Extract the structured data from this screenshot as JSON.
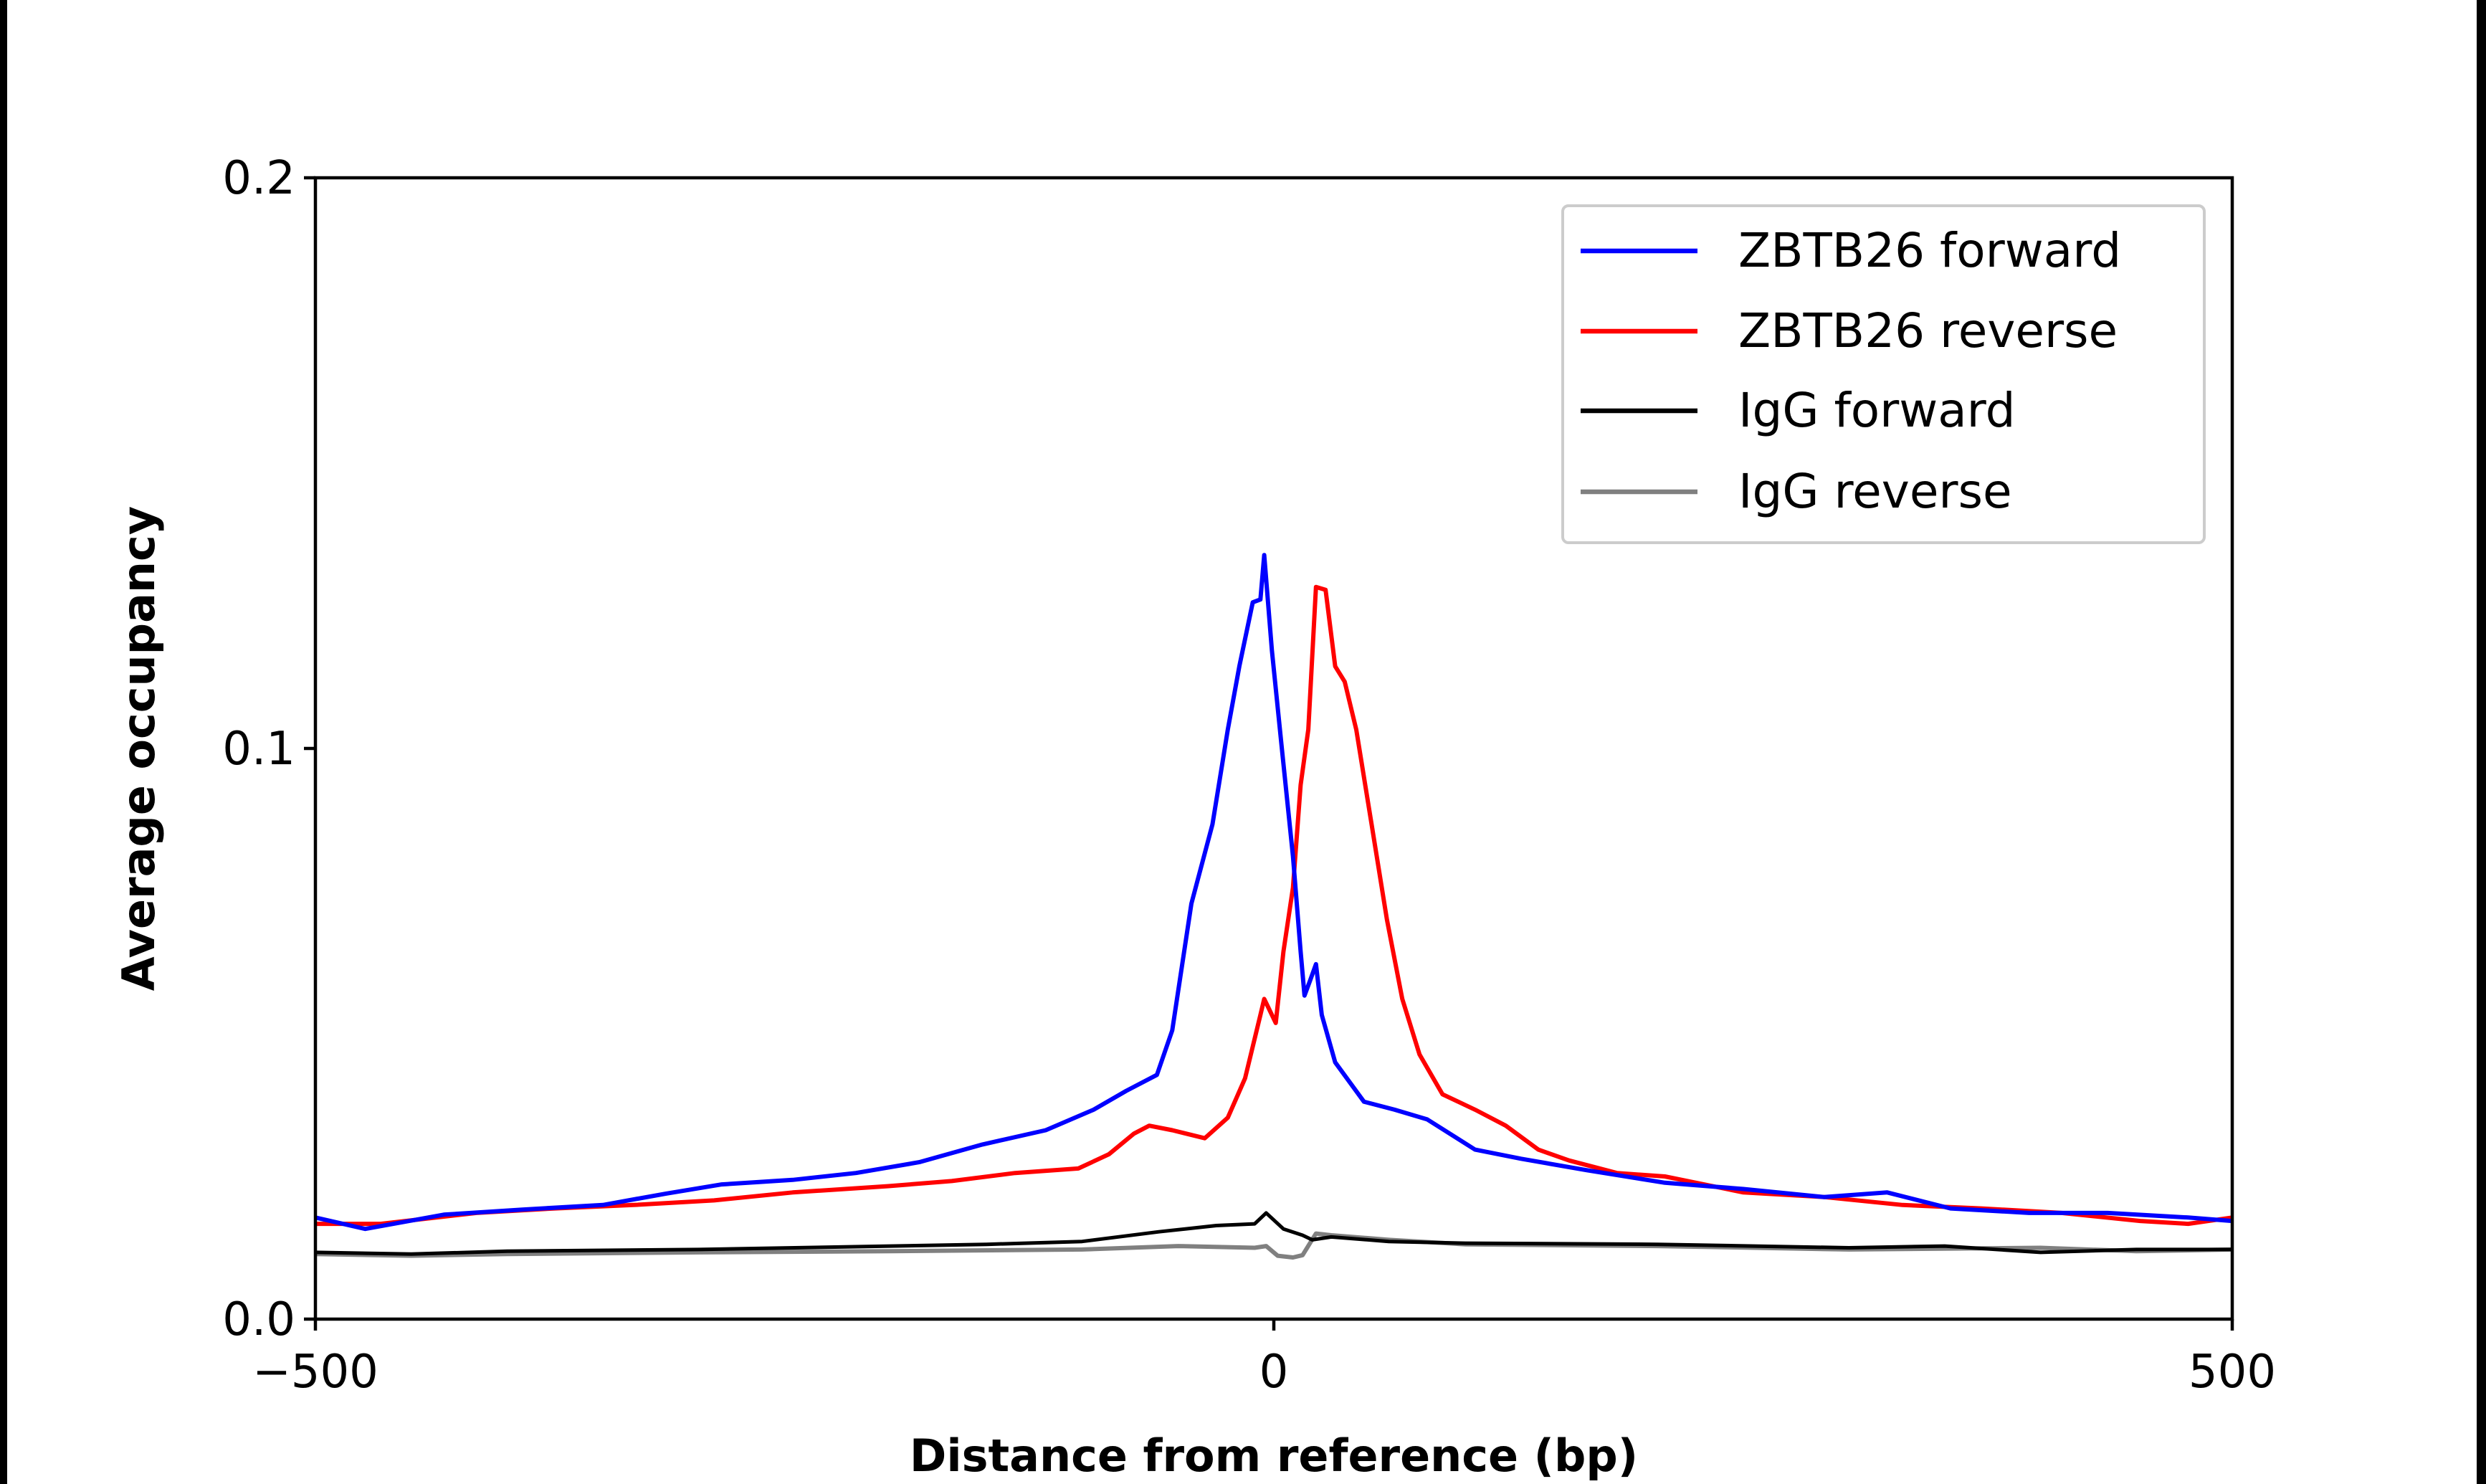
{
  "chart_data": {
    "type": "line",
    "title": "",
    "xlabel": "Distance from reference (bp)",
    "ylabel": "Average occupancy",
    "xlim": [
      -500,
      500
    ],
    "ylim": [
      0,
      0.2
    ],
    "xticks": [
      {
        "value": -500,
        "label": "−500"
      },
      {
        "value": 0,
        "label": "0"
      },
      {
        "value": 500,
        "label": "500"
      }
    ],
    "yticks": [
      {
        "value": 0,
        "label": "0.0"
      },
      {
        "value": 0.1,
        "label": "0.1"
      },
      {
        "value": 0.2,
        "label": "0.2"
      }
    ],
    "grid": false,
    "legend_position": "top-right",
    "series": [
      {
        "name": "ZBTB26 forward",
        "color": "#0000ff",
        "x": [
          -500,
          -474,
          -433,
          -392,
          -350,
          -317,
          -288,
          -251,
          -218,
          -185,
          -152,
          -119,
          -94,
          -77,
          -61,
          -53,
          -43,
          -32,
          -24,
          -18,
          -11,
          -7,
          -5,
          -1,
          4,
          10,
          14,
          16,
          19,
          22,
          25,
          32,
          47,
          63,
          80,
          105,
          129,
          163,
          204,
          245,
          287,
          320,
          353,
          394,
          435,
          477,
          500
        ],
        "y": [
          0.0178,
          0.0158,
          0.0183,
          0.0192,
          0.02,
          0.022,
          0.0236,
          0.0244,
          0.0256,
          0.0275,
          0.0306,
          0.0331,
          0.0367,
          0.04,
          0.0428,
          0.0506,
          0.0728,
          0.0867,
          0.1033,
          0.1144,
          0.1256,
          0.1261,
          0.1339,
          0.1172,
          0.1006,
          0.0811,
          0.0644,
          0.0567,
          0.0594,
          0.0622,
          0.0533,
          0.045,
          0.0381,
          0.0367,
          0.035,
          0.0297,
          0.0281,
          0.0261,
          0.0239,
          0.0228,
          0.0214,
          0.0222,
          0.0194,
          0.0186,
          0.0186,
          0.0178,
          0.0172
        ]
      },
      {
        "name": "ZBTB26 reverse",
        "color": "#ff0000",
        "x": [
          -500,
          -466,
          -416,
          -375,
          -334,
          -292,
          -251,
          -201,
          -168,
          -135,
          -102,
          -86,
          -73,
          -65,
          -53,
          -36,
          -24,
          -15,
          -7,
          -5,
          1,
          5,
          10,
          14,
          18,
          22,
          27,
          32,
          37,
          43,
          51,
          59,
          67,
          76,
          88,
          105,
          121,
          138,
          154,
          179,
          204,
          245,
          287,
          328,
          369,
          411,
          452,
          477,
          500
        ],
        "y": [
          0.0167,
          0.0167,
          0.0186,
          0.0194,
          0.02,
          0.0208,
          0.0222,
          0.0233,
          0.0242,
          0.0256,
          0.0264,
          0.0289,
          0.0325,
          0.0339,
          0.0331,
          0.0317,
          0.0353,
          0.0422,
          0.0533,
          0.0561,
          0.0519,
          0.0644,
          0.0756,
          0.0936,
          0.1033,
          0.1283,
          0.1278,
          0.1144,
          0.1117,
          0.1033,
          0.0867,
          0.07,
          0.0561,
          0.0464,
          0.0394,
          0.0367,
          0.0339,
          0.0297,
          0.0278,
          0.0256,
          0.025,
          0.0222,
          0.0214,
          0.02,
          0.0194,
          0.0186,
          0.0172,
          0.0167,
          0.0178
        ]
      },
      {
        "name": "IgG forward",
        "color": "#000000",
        "x": [
          -500,
          -450,
          -400,
          -300,
          -200,
          -150,
          -100,
          -60,
          -30,
          -10,
          -4,
          5,
          15,
          20,
          30,
          60,
          100,
          200,
          300,
          350,
          400,
          450,
          500
        ],
        "y": [
          0.0117,
          0.0114,
          0.0119,
          0.0122,
          0.0128,
          0.0131,
          0.0136,
          0.0153,
          0.0164,
          0.0167,
          0.0186,
          0.0158,
          0.0147,
          0.0139,
          0.0144,
          0.0136,
          0.0133,
          0.0131,
          0.0125,
          0.0128,
          0.0117,
          0.0122,
          0.0122
        ]
      },
      {
        "name": "IgG reverse",
        "color": "#808080",
        "x": [
          -500,
          -450,
          -400,
          -300,
          -200,
          -100,
          -50,
          -10,
          -4,
          2,
          10,
          15,
          22,
          30,
          60,
          100,
          200,
          300,
          400,
          450,
          500
        ],
        "y": [
          0.0114,
          0.0111,
          0.0114,
          0.0117,
          0.0119,
          0.0122,
          0.0128,
          0.0125,
          0.0128,
          0.0111,
          0.0108,
          0.0112,
          0.015,
          0.0147,
          0.0139,
          0.0131,
          0.0128,
          0.0122,
          0.0125,
          0.0119,
          0.0122
        ]
      }
    ]
  }
}
